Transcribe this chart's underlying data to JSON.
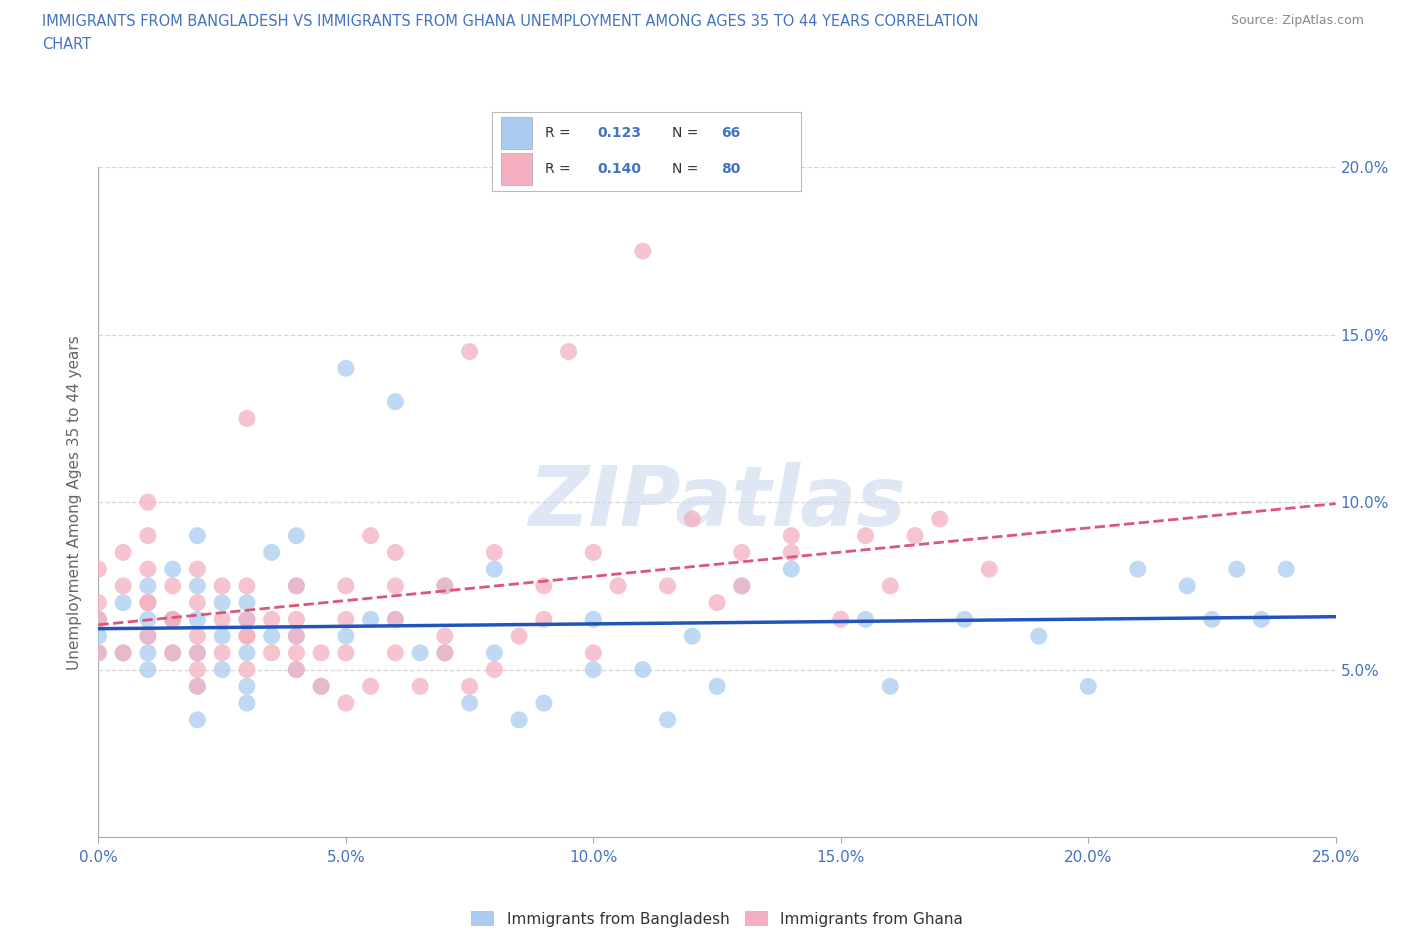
{
  "title_line1": "IMMIGRANTS FROM BANGLADESH VS IMMIGRANTS FROM GHANA UNEMPLOYMENT AMONG AGES 35 TO 44 YEARS CORRELATION",
  "title_line2": "CHART",
  "source": "Source: ZipAtlas.com",
  "ylabel": "Unemployment Among Ages 35 to 44 years",
  "xlim": [
    0.0,
    0.25
  ],
  "ylim": [
    0.0,
    0.2
  ],
  "xticks": [
    0.0,
    0.05,
    0.1,
    0.15,
    0.2,
    0.25
  ],
  "yticks": [
    0.0,
    0.05,
    0.1,
    0.15,
    0.2
  ],
  "xtick_labels": [
    "0.0%",
    "5.0%",
    "10.0%",
    "15.0%",
    "20.0%",
    "25.0%"
  ],
  "ytick_labels_right": [
    "",
    "5.0%",
    "10.0%",
    "15.0%",
    "20.0%"
  ],
  "background_color": "#ffffff",
  "grid_color": "#cccccc",
  "watermark_text": "ZIPatlas",
  "series": [
    {
      "label": "Immigrants from Bangladesh",
      "R": 0.123,
      "N": 66,
      "scatter_color": "#aaccf0",
      "line_color": "#2255bb",
      "line_style": "-",
      "x": [
        0.0,
        0.0,
        0.0,
        0.005,
        0.005,
        0.01,
        0.01,
        0.01,
        0.01,
        0.01,
        0.015,
        0.015,
        0.015,
        0.02,
        0.02,
        0.02,
        0.02,
        0.02,
        0.02,
        0.025,
        0.025,
        0.025,
        0.03,
        0.03,
        0.03,
        0.03,
        0.03,
        0.035,
        0.035,
        0.04,
        0.04,
        0.04,
        0.04,
        0.045,
        0.05,
        0.05,
        0.055,
        0.06,
        0.06,
        0.065,
        0.07,
        0.07,
        0.075,
        0.08,
        0.08,
        0.085,
        0.09,
        0.1,
        0.1,
        0.11,
        0.115,
        0.12,
        0.125,
        0.13,
        0.14,
        0.155,
        0.16,
        0.175,
        0.19,
        0.2,
        0.21,
        0.22,
        0.225,
        0.23,
        0.235,
        0.24
      ],
      "y": [
        0.06,
        0.065,
        0.055,
        0.07,
        0.055,
        0.075,
        0.065,
        0.055,
        0.05,
        0.06,
        0.08,
        0.065,
        0.055,
        0.09,
        0.075,
        0.065,
        0.055,
        0.045,
        0.035,
        0.07,
        0.06,
        0.05,
        0.07,
        0.065,
        0.055,
        0.045,
        0.04,
        0.085,
        0.06,
        0.09,
        0.075,
        0.06,
        0.05,
        0.045,
        0.14,
        0.06,
        0.065,
        0.13,
        0.065,
        0.055,
        0.075,
        0.055,
        0.04,
        0.08,
        0.055,
        0.035,
        0.04,
        0.065,
        0.05,
        0.05,
        0.035,
        0.06,
        0.045,
        0.075,
        0.08,
        0.065,
        0.045,
        0.065,
        0.06,
        0.045,
        0.08,
        0.075,
        0.065,
        0.08,
        0.065,
        0.08
      ]
    },
    {
      "label": "Immigrants from Ghana",
      "R": 0.14,
      "N": 80,
      "scatter_color": "#f4b0c0",
      "line_color": "#dd5577",
      "line_style": "--",
      "x": [
        0.0,
        0.0,
        0.0,
        0.0,
        0.005,
        0.005,
        0.005,
        0.01,
        0.01,
        0.01,
        0.01,
        0.01,
        0.01,
        0.015,
        0.015,
        0.015,
        0.015,
        0.02,
        0.02,
        0.02,
        0.02,
        0.02,
        0.02,
        0.025,
        0.025,
        0.025,
        0.03,
        0.03,
        0.03,
        0.03,
        0.03,
        0.03,
        0.035,
        0.035,
        0.04,
        0.04,
        0.04,
        0.04,
        0.04,
        0.045,
        0.045,
        0.05,
        0.05,
        0.05,
        0.05,
        0.055,
        0.055,
        0.06,
        0.06,
        0.06,
        0.06,
        0.065,
        0.07,
        0.07,
        0.07,
        0.075,
        0.075,
        0.08,
        0.08,
        0.085,
        0.09,
        0.09,
        0.095,
        0.1,
        0.1,
        0.105,
        0.11,
        0.115,
        0.12,
        0.125,
        0.13,
        0.13,
        0.14,
        0.14,
        0.15,
        0.155,
        0.16,
        0.165,
        0.17,
        0.18
      ],
      "y": [
        0.055,
        0.065,
        0.07,
        0.08,
        0.055,
        0.075,
        0.085,
        0.06,
        0.07,
        0.07,
        0.08,
        0.09,
        0.1,
        0.065,
        0.075,
        0.065,
        0.055,
        0.05,
        0.06,
        0.07,
        0.08,
        0.055,
        0.045,
        0.065,
        0.075,
        0.055,
        0.06,
        0.065,
        0.075,
        0.06,
        0.05,
        0.125,
        0.065,
        0.055,
        0.065,
        0.055,
        0.075,
        0.06,
        0.05,
        0.055,
        0.045,
        0.04,
        0.055,
        0.065,
        0.075,
        0.09,
        0.045,
        0.055,
        0.065,
        0.075,
        0.085,
        0.045,
        0.06,
        0.075,
        0.055,
        0.145,
        0.045,
        0.05,
        0.085,
        0.06,
        0.065,
        0.075,
        0.145,
        0.085,
        0.055,
        0.075,
        0.175,
        0.075,
        0.095,
        0.07,
        0.075,
        0.085,
        0.085,
        0.09,
        0.065,
        0.09,
        0.075,
        0.09,
        0.095,
        0.08
      ]
    }
  ]
}
